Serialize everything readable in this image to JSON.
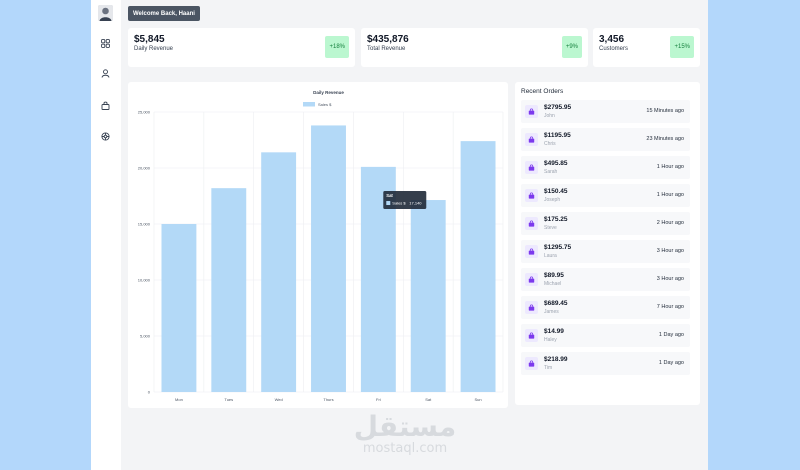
{
  "header": {
    "welcome": "Welcome Back, Haani"
  },
  "sidebar": {
    "items": [
      {
        "icon": "grid-icon"
      },
      {
        "icon": "user-icon"
      },
      {
        "icon": "bag-icon"
      },
      {
        "icon": "settings-icon"
      }
    ]
  },
  "stats": [
    {
      "value": "$5,845",
      "label": "Daily Revenue",
      "change": "+18%"
    },
    {
      "value": "$435,876",
      "label": "Total Revenue",
      "change": "+9%"
    },
    {
      "value": "3,456",
      "label": "Customers",
      "change": "+15%"
    }
  ],
  "chart_data": {
    "type": "bar",
    "title": "Daily Revenue",
    "legend": "Sales $",
    "legend_position": "top-center",
    "categories": [
      "Mon",
      "Tues",
      "Wed",
      "Thurs",
      "Fri",
      "Sat",
      "Sun"
    ],
    "values": [
      15000,
      18200,
      21400,
      23800,
      20100,
      17140,
      22400
    ],
    "ylim": [
      0,
      25000
    ],
    "yticks": [
      "0",
      "5,000",
      "10,000",
      "15,000",
      "20,000",
      "25,000"
    ],
    "grid": true,
    "bar_color": "#b3d9f7",
    "tooltip": {
      "title": "Sat",
      "label": "Sales $",
      "value": "17,140"
    }
  },
  "orders": {
    "title": "Recent Orders",
    "items": [
      {
        "amount": "$2795.95",
        "name": "John",
        "time": "15 Minutes ago"
      },
      {
        "amount": "$1195.95",
        "name": "Chris",
        "time": "23 Minutes ago"
      },
      {
        "amount": "$495.85",
        "name": "Sarah",
        "time": "1 Hour ago"
      },
      {
        "amount": "$150.45",
        "name": "Joseph",
        "time": "1 Hour ago"
      },
      {
        "amount": "$175.25",
        "name": "Steve",
        "time": "2 Hour ago"
      },
      {
        "amount": "$1295.75",
        "name": "Laura",
        "time": "3 Hour ago"
      },
      {
        "amount": "$89.95",
        "name": "Michael",
        "time": "3 Hour ago"
      },
      {
        "amount": "$689.45",
        "name": "James",
        "time": "7 Hour ago"
      },
      {
        "amount": "$14.99",
        "name": "Haley",
        "time": "1 Day ago"
      },
      {
        "amount": "$218.99",
        "name": "Tim",
        "time": "1 Day ago"
      }
    ]
  },
  "watermark": {
    "arabic": "مستقل",
    "latin": "mostaql.com"
  }
}
